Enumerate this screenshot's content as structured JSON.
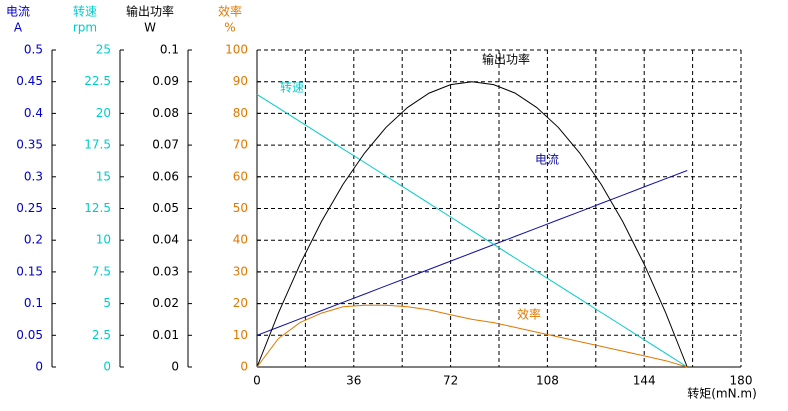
{
  "chart_data": {
    "type": "line",
    "xlabel": "转矩(mN.m)",
    "xlim": [
      0,
      180
    ],
    "xticks": [
      0,
      36,
      72,
      108,
      144,
      180
    ],
    "xminor": [
      18,
      54,
      90,
      126,
      162
    ],
    "grid": true,
    "axes": [
      {
        "title": "电流",
        "unit": "A",
        "color": "#0000cc",
        "lim": [
          0,
          0.5
        ],
        "ticks": [
          0,
          0.05,
          0.1,
          0.15,
          0.2,
          0.25,
          0.3,
          0.35,
          0.4,
          0.45,
          0.5
        ]
      },
      {
        "title": "转速",
        "unit": "rpm",
        "color": "#00cccc",
        "lim": [
          0,
          25
        ],
        "ticks": [
          0,
          2.5,
          5,
          7.5,
          10,
          12.5,
          15,
          17.5,
          20,
          22.5,
          25
        ]
      },
      {
        "title": "输出功率",
        "unit": "W",
        "color": "#000000",
        "lim": [
          0,
          0.1
        ],
        "ticks": [
          0,
          0.01,
          0.02,
          0.03,
          0.04,
          0.05,
          0.06,
          0.07,
          0.08,
          0.09,
          0.1
        ]
      },
      {
        "title": "效率",
        "unit": "%",
        "color": "#e07800",
        "lim": [
          0,
          100
        ],
        "ticks": [
          0,
          10,
          20,
          30,
          40,
          50,
          60,
          70,
          80,
          90,
          100
        ]
      }
    ],
    "x": [
      0,
      8,
      16,
      24,
      32,
      40,
      48,
      56,
      64,
      72,
      80,
      88,
      96,
      104,
      112,
      120,
      128,
      136,
      144,
      152,
      160
    ],
    "series": [
      {
        "name": "电流",
        "axis": 0,
        "color": "#1010a0",
        "values": [
          0.05,
          0.063,
          0.076,
          0.089,
          0.102,
          0.115,
          0.128,
          0.141,
          0.154,
          0.167,
          0.18,
          0.193,
          0.206,
          0.219,
          0.232,
          0.245,
          0.258,
          0.271,
          0.284,
          0.297,
          0.31
        ]
      },
      {
        "name": "转速",
        "axis": 1,
        "color": "#00cccc",
        "values": [
          21.5,
          20.43,
          19.35,
          18.28,
          17.2,
          16.13,
          15.05,
          13.98,
          12.9,
          11.83,
          10.75,
          9.68,
          8.6,
          7.53,
          6.45,
          5.38,
          4.3,
          3.23,
          2.15,
          1.08,
          0
        ]
      },
      {
        "name": "输出功率",
        "axis": 2,
        "color": "#000000",
        "values": [
          0,
          0.0171,
          0.0324,
          0.0459,
          0.0576,
          0.0675,
          0.0756,
          0.0819,
          0.0864,
          0.0891,
          0.09,
          0.0891,
          0.0864,
          0.0819,
          0.0756,
          0.0675,
          0.0576,
          0.0459,
          0.0324,
          0.0171,
          0
        ]
      },
      {
        "name": "效率",
        "axis": 3,
        "color": "#e07800",
        "values": [
          0,
          9,
          14,
          17,
          19,
          19.5,
          19.5,
          19,
          18,
          16.5,
          15,
          14,
          12.5,
          11,
          9.5,
          8,
          6.5,
          5,
          3.5,
          2,
          0
        ]
      }
    ]
  }
}
